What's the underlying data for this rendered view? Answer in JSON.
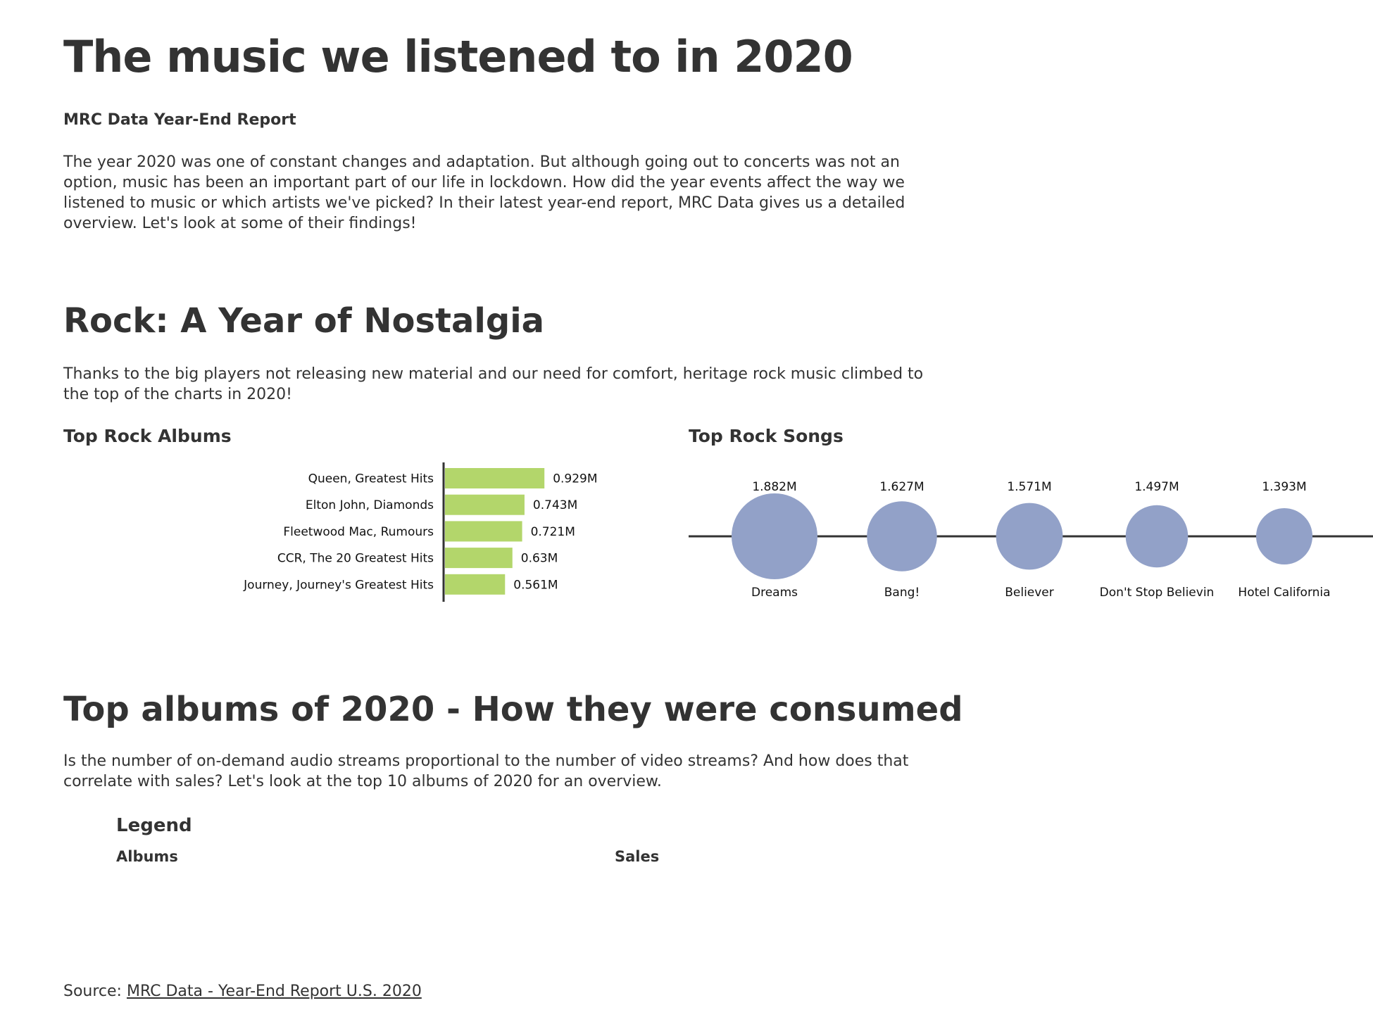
{
  "header": {
    "title": "The music we listened to in 2020",
    "subtitle": "MRC Data Year-End Report",
    "intro": "The year 2020 was one of constant changes and adaptation. But although going out to concerts was not an option, music has been an important part of our life in lockdown. How did the year events affect the way we listened to music or which artists we've picked? In their latest year-end report, MRC Data gives us a detailed overview. Let's look at some of their findings!"
  },
  "rock": {
    "heading": "Rock: A Year of Nostalgia",
    "text": "Thanks to the big players not releasing new material and our need for comfort, heritage rock music climbed to the top of the charts in 2020!",
    "albums_title": "Top Rock Albums",
    "songs_title": "Top Rock Songs"
  },
  "consumption": {
    "heading": "Top albums of 2020 - How they were consumed",
    "text": "Is the number of on-demand audio streams proportional to the number of video streams? And how does that correlate with sales? Let's look at the top 10 albums of 2020 for an overview.",
    "legend_title": "Legend",
    "legend_albums": "Albums",
    "legend_sales": "Sales"
  },
  "source": {
    "prefix": "Source: ",
    "link_text": "MRC Data - Year-End Report U.S. 2020"
  },
  "colors": {
    "bar": "#b3d66b",
    "bubble": "#92a1c8",
    "axis": "#333333",
    "text": "#333333"
  },
  "chart_data": [
    {
      "type": "bar",
      "orientation": "horizontal",
      "title": "Top Rock Albums",
      "categories": [
        "Queen, Greatest Hits",
        "Elton John, Diamonds",
        "Fleetwood Mac, Rumours",
        "CCR, The 20 Greatest Hits",
        "Journey, Journey's Greatest Hits"
      ],
      "values": [
        0.929,
        0.743,
        0.721,
        0.63,
        0.561
      ],
      "value_labels": [
        "0.929M",
        "0.743M",
        "0.721M",
        "0.63M",
        "0.561M"
      ],
      "grid": false
    },
    {
      "type": "scatter",
      "encoding": "bubble-size",
      "title": "Top Rock Songs",
      "categories": [
        "Dreams",
        "Bang!",
        "Believer",
        "Don't Stop Believin",
        "Hotel California"
      ],
      "values": [
        1.882,
        1.627,
        1.571,
        1.497,
        1.393
      ],
      "value_labels": [
        "1.882M",
        "1.627M",
        "1.571M",
        "1.497M",
        "1.393M"
      ],
      "grid": false
    }
  ]
}
